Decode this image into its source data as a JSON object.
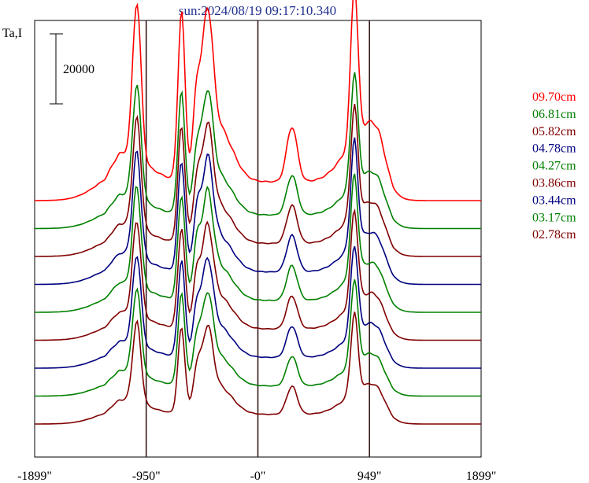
{
  "page_title": "sun:2024/08/19 09:17:10.340",
  "chart_data": {
    "type": "line",
    "title": "sun:2024/08/19 09:17:10.340",
    "ylabel": "Ta,I",
    "scale_bar_label": "20000",
    "x_ticks": [
      "-1899\"",
      "-950\"",
      "-0\"",
      "949\"",
      "1899\""
    ],
    "x_tick_values": [
      -1899,
      -950,
      0,
      949,
      1899
    ],
    "xlim": [
      -1899,
      1899
    ],
    "vertical_lines_at": [
      -950,
      0,
      949
    ],
    "grid": false,
    "legend_position": "right",
    "series": [
      {
        "name": "09.70cm",
        "color": "#ff0000",
        "baseline_index": 0
      },
      {
        "name": "06.81cm",
        "color": "#008000",
        "baseline_index": 1
      },
      {
        "name": "05.82cm",
        "color": "#800000",
        "baseline_index": 2
      },
      {
        "name": "04.78cm",
        "color": "#000080",
        "baseline_index": 3
      },
      {
        "name": "04.27cm",
        "color": "#008000",
        "baseline_index": 4
      },
      {
        "name": "03.86cm",
        "color": "#800000",
        "baseline_index": 5
      },
      {
        "name": "03.44cm",
        "color": "#000080",
        "baseline_index": 6
      },
      {
        "name": "03.17cm",
        "color": "#008000",
        "baseline_index": 7
      },
      {
        "name": "02.78cm",
        "color": "#800000",
        "baseline_index": 8
      }
    ]
  }
}
